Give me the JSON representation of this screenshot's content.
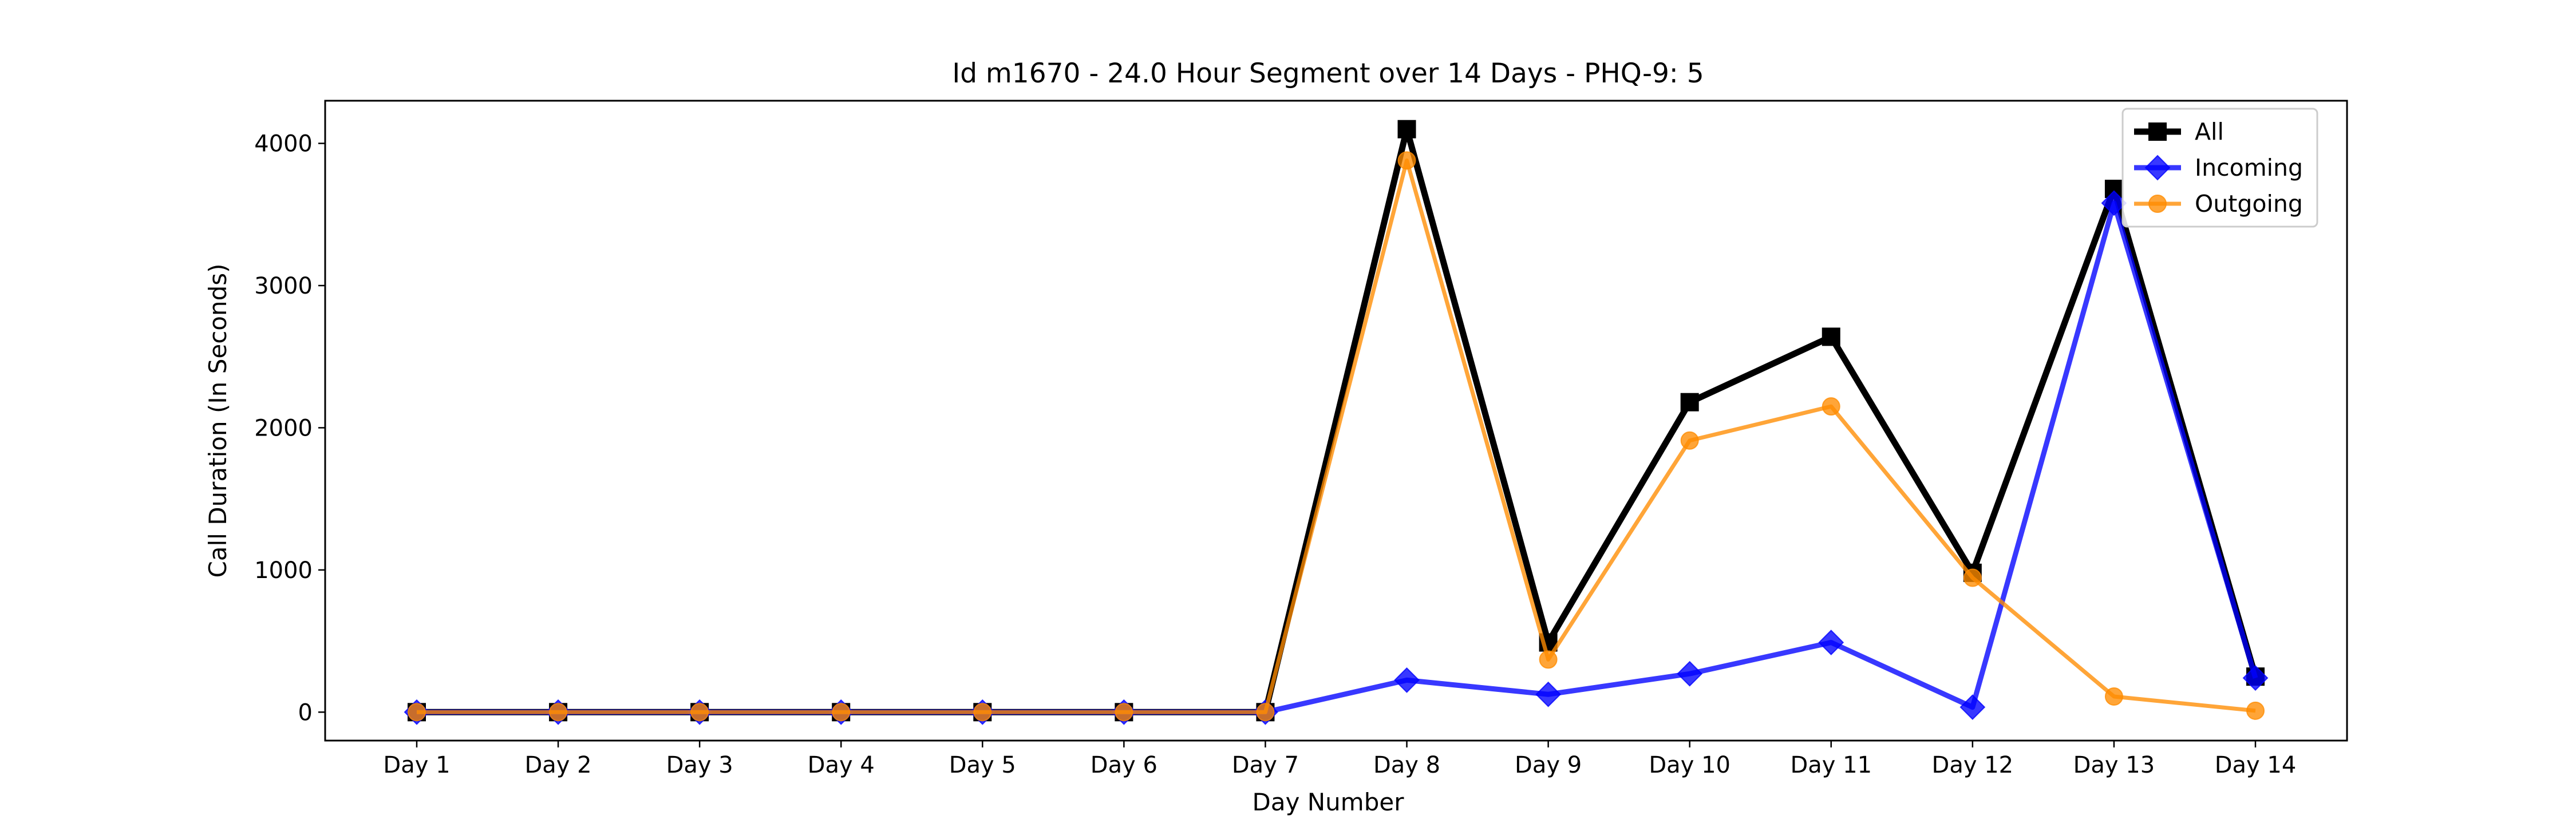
{
  "chart_data": {
    "type": "line",
    "title": "Id m1670 - 24.0 Hour Segment over 14 Days - PHQ-9: 5",
    "xlabel": "Day Number",
    "ylabel": "Call Duration (In Seconds)",
    "categories": [
      "Day 1",
      "Day 2",
      "Day 3",
      "Day 4",
      "Day 5",
      "Day 6",
      "Day 7",
      "Day 8",
      "Day 9",
      "Day 10",
      "Day 11",
      "Day 12",
      "Day 13",
      "Day 14"
    ],
    "ylim": [
      -200,
      4300
    ],
    "yticks": [
      0,
      1000,
      2000,
      3000,
      4000
    ],
    "grid": false,
    "legend_position": "top-right",
    "series": [
      {
        "name": "All",
        "color": "#000000",
        "marker": "square",
        "values": [
          0,
          0,
          0,
          0,
          0,
          0,
          0,
          4100,
          490,
          2180,
          2640,
          980,
          3680,
          250
        ]
      },
      {
        "name": "Incoming",
        "color": "#0000ff",
        "marker": "diamond",
        "values": [
          0,
          0,
          0,
          0,
          0,
          0,
          0,
          225,
          125,
          270,
          490,
          35,
          3580,
          240
        ]
      },
      {
        "name": "Outgoing",
        "color": "#ff8c00",
        "marker": "circle",
        "values": [
          0,
          0,
          0,
          0,
          0,
          0,
          0,
          3880,
          370,
          1910,
          2150,
          945,
          110,
          10
        ]
      }
    ]
  }
}
